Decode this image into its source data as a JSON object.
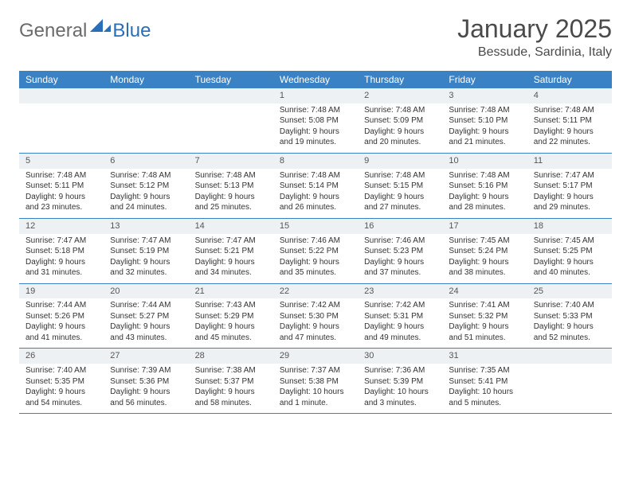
{
  "brand": {
    "text_gray": "General",
    "text_blue": "Blue"
  },
  "title": "January 2025",
  "location": "Bessude, Sardinia, Italy",
  "header_bg": "#3b82c4",
  "header_text_color": "#ffffff",
  "daynum_bg": "#eef1f4",
  "border_color": "#3b82c4",
  "day_names": [
    "Sunday",
    "Monday",
    "Tuesday",
    "Wednesday",
    "Thursday",
    "Friday",
    "Saturday"
  ],
  "weeks": [
    [
      {
        "blank": true
      },
      {
        "blank": true
      },
      {
        "blank": true
      },
      {
        "day": "1",
        "sunrise": "7:48 AM",
        "sunset": "5:08 PM",
        "daylight1": "Daylight: 9 hours",
        "daylight2": "and 19 minutes."
      },
      {
        "day": "2",
        "sunrise": "7:48 AM",
        "sunset": "5:09 PM",
        "daylight1": "Daylight: 9 hours",
        "daylight2": "and 20 minutes."
      },
      {
        "day": "3",
        "sunrise": "7:48 AM",
        "sunset": "5:10 PM",
        "daylight1": "Daylight: 9 hours",
        "daylight2": "and 21 minutes."
      },
      {
        "day": "4",
        "sunrise": "7:48 AM",
        "sunset": "5:11 PM",
        "daylight1": "Daylight: 9 hours",
        "daylight2": "and 22 minutes."
      }
    ],
    [
      {
        "day": "5",
        "sunrise": "7:48 AM",
        "sunset": "5:11 PM",
        "daylight1": "Daylight: 9 hours",
        "daylight2": "and 23 minutes."
      },
      {
        "day": "6",
        "sunrise": "7:48 AM",
        "sunset": "5:12 PM",
        "daylight1": "Daylight: 9 hours",
        "daylight2": "and 24 minutes."
      },
      {
        "day": "7",
        "sunrise": "7:48 AM",
        "sunset": "5:13 PM",
        "daylight1": "Daylight: 9 hours",
        "daylight2": "and 25 minutes."
      },
      {
        "day": "8",
        "sunrise": "7:48 AM",
        "sunset": "5:14 PM",
        "daylight1": "Daylight: 9 hours",
        "daylight2": "and 26 minutes."
      },
      {
        "day": "9",
        "sunrise": "7:48 AM",
        "sunset": "5:15 PM",
        "daylight1": "Daylight: 9 hours",
        "daylight2": "and 27 minutes."
      },
      {
        "day": "10",
        "sunrise": "7:48 AM",
        "sunset": "5:16 PM",
        "daylight1": "Daylight: 9 hours",
        "daylight2": "and 28 minutes."
      },
      {
        "day": "11",
        "sunrise": "7:47 AM",
        "sunset": "5:17 PM",
        "daylight1": "Daylight: 9 hours",
        "daylight2": "and 29 minutes."
      }
    ],
    [
      {
        "day": "12",
        "sunrise": "7:47 AM",
        "sunset": "5:18 PM",
        "daylight1": "Daylight: 9 hours",
        "daylight2": "and 31 minutes."
      },
      {
        "day": "13",
        "sunrise": "7:47 AM",
        "sunset": "5:19 PM",
        "daylight1": "Daylight: 9 hours",
        "daylight2": "and 32 minutes."
      },
      {
        "day": "14",
        "sunrise": "7:47 AM",
        "sunset": "5:21 PM",
        "daylight1": "Daylight: 9 hours",
        "daylight2": "and 34 minutes."
      },
      {
        "day": "15",
        "sunrise": "7:46 AM",
        "sunset": "5:22 PM",
        "daylight1": "Daylight: 9 hours",
        "daylight2": "and 35 minutes."
      },
      {
        "day": "16",
        "sunrise": "7:46 AM",
        "sunset": "5:23 PM",
        "daylight1": "Daylight: 9 hours",
        "daylight2": "and 37 minutes."
      },
      {
        "day": "17",
        "sunrise": "7:45 AM",
        "sunset": "5:24 PM",
        "daylight1": "Daylight: 9 hours",
        "daylight2": "and 38 minutes."
      },
      {
        "day": "18",
        "sunrise": "7:45 AM",
        "sunset": "5:25 PM",
        "daylight1": "Daylight: 9 hours",
        "daylight2": "and 40 minutes."
      }
    ],
    [
      {
        "day": "19",
        "sunrise": "7:44 AM",
        "sunset": "5:26 PM",
        "daylight1": "Daylight: 9 hours",
        "daylight2": "and 41 minutes."
      },
      {
        "day": "20",
        "sunrise": "7:44 AM",
        "sunset": "5:27 PM",
        "daylight1": "Daylight: 9 hours",
        "daylight2": "and 43 minutes."
      },
      {
        "day": "21",
        "sunrise": "7:43 AM",
        "sunset": "5:29 PM",
        "daylight1": "Daylight: 9 hours",
        "daylight2": "and 45 minutes."
      },
      {
        "day": "22",
        "sunrise": "7:42 AM",
        "sunset": "5:30 PM",
        "daylight1": "Daylight: 9 hours",
        "daylight2": "and 47 minutes."
      },
      {
        "day": "23",
        "sunrise": "7:42 AM",
        "sunset": "5:31 PM",
        "daylight1": "Daylight: 9 hours",
        "daylight2": "and 49 minutes."
      },
      {
        "day": "24",
        "sunrise": "7:41 AM",
        "sunset": "5:32 PM",
        "daylight1": "Daylight: 9 hours",
        "daylight2": "and 51 minutes."
      },
      {
        "day": "25",
        "sunrise": "7:40 AM",
        "sunset": "5:33 PM",
        "daylight1": "Daylight: 9 hours",
        "daylight2": "and 52 minutes."
      }
    ],
    [
      {
        "day": "26",
        "sunrise": "7:40 AM",
        "sunset": "5:35 PM",
        "daylight1": "Daylight: 9 hours",
        "daylight2": "and 54 minutes."
      },
      {
        "day": "27",
        "sunrise": "7:39 AM",
        "sunset": "5:36 PM",
        "daylight1": "Daylight: 9 hours",
        "daylight2": "and 56 minutes."
      },
      {
        "day": "28",
        "sunrise": "7:38 AM",
        "sunset": "5:37 PM",
        "daylight1": "Daylight: 9 hours",
        "daylight2": "and 58 minutes."
      },
      {
        "day": "29",
        "sunrise": "7:37 AM",
        "sunset": "5:38 PM",
        "daylight1": "Daylight: 10 hours",
        "daylight2": "and 1 minute."
      },
      {
        "day": "30",
        "sunrise": "7:36 AM",
        "sunset": "5:39 PM",
        "daylight1": "Daylight: 10 hours",
        "daylight2": "and 3 minutes."
      },
      {
        "day": "31",
        "sunrise": "7:35 AM",
        "sunset": "5:41 PM",
        "daylight1": "Daylight: 10 hours",
        "daylight2": "and 5 minutes."
      },
      {
        "blank": true
      }
    ]
  ],
  "labels": {
    "sunrise_prefix": "Sunrise: ",
    "sunset_prefix": "Sunset: "
  }
}
